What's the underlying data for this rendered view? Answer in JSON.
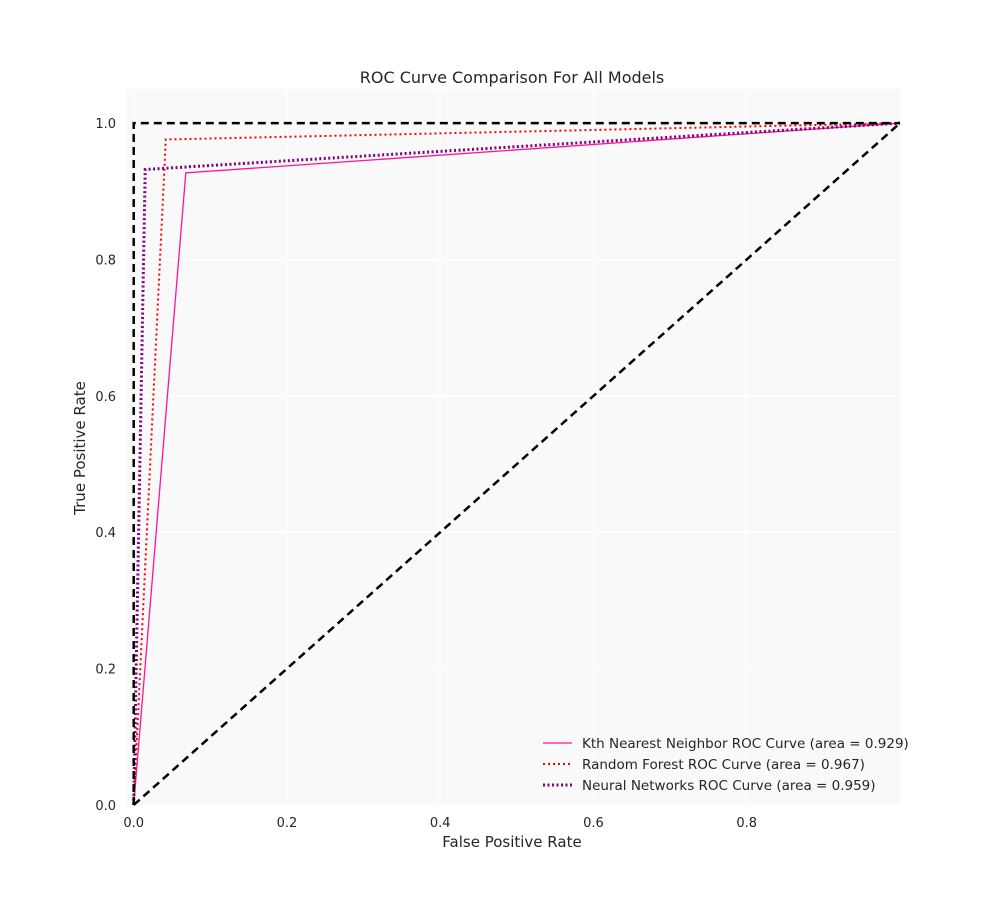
{
  "chart_data": {
    "type": "line",
    "title": "ROC Curve Comparison For All Models",
    "xlabel": "False Positive Rate",
    "ylabel": "True Positive Rate",
    "xlim": [
      -0.01,
      1.0
    ],
    "ylim": [
      0.0,
      1.05
    ],
    "x_ticks": [
      "0.0",
      "0.2",
      "0.4",
      "0.6",
      "0.8"
    ],
    "y_ticks": [
      "0.0",
      "0.2",
      "0.4",
      "0.6",
      "0.8",
      "1.0"
    ],
    "grid": true,
    "legend_position": "lower-right",
    "series": [
      {
        "name": "Kth Nearest Neighbor ROC Curve (area =  0.929)",
        "x": [
          0.0,
          0.068,
          1.0
        ],
        "y": [
          0.0,
          0.927,
          1.0
        ],
        "color": "#ff1493",
        "style": "solid"
      },
      {
        "name": "Random Forest ROC Curve (area =  0.967)",
        "x": [
          0.0,
          0.042,
          1.0
        ],
        "y": [
          0.0,
          0.976,
          1.0
        ],
        "color": "#ff0000",
        "style": "dotted"
      },
      {
        "name": "Neural Networks ROC Curve (area =  0.959)",
        "x": [
          0.0,
          0.015,
          1.0
        ],
        "y": [
          0.0,
          0.932,
          1.0
        ],
        "color": "#800080",
        "style": "dotted-thick"
      }
    ],
    "reference_lines": [
      {
        "x": [
          0.0,
          1.0
        ],
        "y": [
          0.0,
          1.0
        ],
        "color": "#000000",
        "style": "dashed"
      },
      {
        "x": [
          0.0,
          0.0,
          1.0
        ],
        "y": [
          0.0,
          1.0,
          1.0
        ],
        "color": "#000000",
        "style": "dashed"
      }
    ]
  }
}
